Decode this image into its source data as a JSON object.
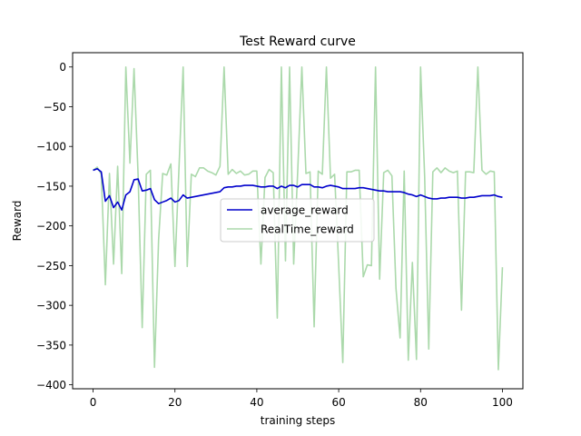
{
  "chart_data": {
    "type": "line",
    "title": "Test Reward curve",
    "xlabel": "training steps",
    "ylabel": "Reward",
    "xlim": [
      -5,
      105
    ],
    "ylim": [
      -405,
      18
    ],
    "xticks": [
      0,
      20,
      40,
      60,
      80,
      100
    ],
    "yticks": [
      0,
      -50,
      -100,
      -150,
      -200,
      -250,
      -300,
      -350,
      -400
    ],
    "grid": false,
    "legend_position": "center-right",
    "series": [
      {
        "name": "average_reward",
        "color": "#0000cc",
        "opacity": 1,
        "x": [
          0,
          1,
          2,
          3,
          4,
          5,
          6,
          7,
          8,
          9,
          10,
          11,
          12,
          13,
          14,
          15,
          16,
          17,
          18,
          19,
          20,
          21,
          22,
          23,
          24,
          25,
          26,
          27,
          28,
          29,
          30,
          31,
          32,
          33,
          34,
          35,
          36,
          37,
          38,
          39,
          40,
          41,
          42,
          43,
          44,
          45,
          46,
          47,
          48,
          49,
          50,
          51,
          52,
          53,
          54,
          55,
          56,
          57,
          58,
          59,
          60,
          61,
          62,
          63,
          64,
          65,
          66,
          67,
          68,
          69,
          70,
          71,
          72,
          73,
          74,
          75,
          76,
          77,
          78,
          79,
          80,
          81,
          82,
          83,
          84,
          85,
          86,
          87,
          88,
          89,
          90,
          91,
          92,
          93,
          94,
          95,
          96,
          97,
          98,
          99,
          100
        ],
        "y": [
          -130,
          -128,
          -132,
          -169,
          -162,
          -177,
          -170,
          -180,
          -161,
          -157,
          -142,
          -141,
          -156,
          -155,
          -153,
          -167,
          -172,
          -170,
          -168,
          -165,
          -170,
          -168,
          -161,
          -165,
          -164,
          -163,
          -162,
          -161,
          -160,
          -159,
          -158,
          -157,
          -152,
          -151,
          -151,
          -150,
          -150,
          -149,
          -149,
          -149,
          -150,
          -151,
          -151,
          -150,
          -150,
          -153,
          -150,
          -152,
          -149,
          -149,
          -151,
          -148,
          -148,
          -148,
          -151,
          -151,
          -152,
          -150,
          -149,
          -150,
          -151,
          -153,
          -153,
          -153,
          -153,
          -152,
          -152,
          -153,
          -154,
          -155,
          -156,
          -156,
          -157,
          -157,
          -157,
          -157,
          -158,
          -160,
          -161,
          -163,
          -161,
          -163,
          -165,
          -166,
          -166,
          -165,
          -165,
          -164,
          -164,
          -164,
          -165,
          -165,
          -164,
          -164,
          -163,
          -162,
          -162,
          -162,
          -161,
          -163,
          -164
        ]
      },
      {
        "name": "RealTime_reward",
        "color": "#2ca02c",
        "opacity": 0.4,
        "x": [
          0,
          1,
          2,
          3,
          4,
          5,
          6,
          7,
          8,
          9,
          10,
          11,
          12,
          13,
          14,
          15,
          16,
          17,
          18,
          19,
          20,
          21,
          22,
          23,
          24,
          25,
          26,
          27,
          28,
          29,
          30,
          31,
          32,
          33,
          34,
          35,
          36,
          37,
          38,
          39,
          40,
          41,
          42,
          43,
          44,
          45,
          46,
          47,
          48,
          49,
          50,
          51,
          52,
          53,
          54,
          55,
          56,
          57,
          58,
          59,
          60,
          61,
          62,
          63,
          64,
          65,
          66,
          67,
          68,
          69,
          70,
          71,
          72,
          73,
          74,
          75,
          76,
          77,
          78,
          79,
          80,
          81,
          82,
          83,
          84,
          85,
          86,
          87,
          88,
          89,
          90,
          91,
          92,
          93,
          94,
          95,
          96,
          97,
          98,
          99,
          100
        ],
        "y": [
          -130,
          -126,
          -135,
          -274,
          -134,
          -248,
          -125,
          -260,
          0,
          -121,
          -2,
          -137,
          -328,
          -135,
          -130,
          -378,
          -218,
          -134,
          -136,
          -122,
          -251,
          -125,
          0,
          -251,
          -135,
          -138,
          -127,
          -127,
          -131,
          -133,
          -136,
          -125,
          0,
          -135,
          -129,
          -134,
          -131,
          -136,
          -135,
          -131,
          -131,
          -248,
          -139,
          -129,
          -133,
          -316,
          0,
          -244,
          0,
          -248,
          -130,
          0,
          -134,
          -132,
          -327,
          -131,
          -135,
          0,
          -140,
          -135,
          -250,
          -372,
          -132,
          -132,
          -130,
          -130,
          -264,
          -249,
          -250,
          0,
          -267,
          -133,
          -130,
          -137,
          -279,
          -341,
          -131,
          -369,
          -246,
          -368,
          0,
          -138,
          -355,
          -132,
          -127,
          -133,
          -127,
          -131,
          -133,
          -131,
          -306,
          -132,
          -132,
          -133,
          0,
          -130,
          -135,
          -131,
          -132,
          -381,
          -252
        ]
      }
    ]
  }
}
